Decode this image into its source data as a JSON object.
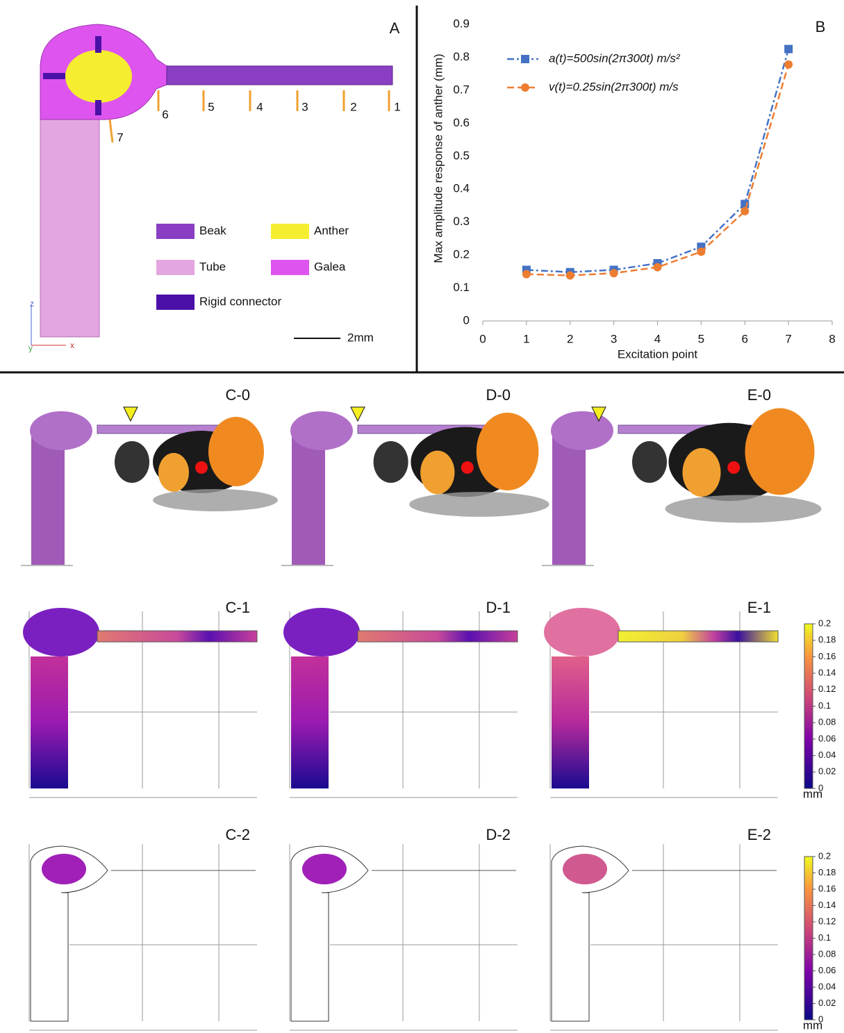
{
  "panel_a": {
    "label": "A",
    "points": [
      "1",
      "2",
      "3",
      "4",
      "5",
      "6",
      "7"
    ],
    "legend": [
      {
        "name": "Beak",
        "color": "#8a3fc2"
      },
      {
        "name": "Anther",
        "color": "#f5ee30"
      },
      {
        "name": "Tube",
        "color": "#e3a6e0"
      },
      {
        "name": "Galea",
        "color": "#dd55ee"
      },
      {
        "name": "Rigid connector",
        "color": "#4a10a8"
      }
    ],
    "axes": [
      "z",
      "y",
      "x"
    ],
    "scale": "2mm"
  },
  "chart_data": {
    "type": "line",
    "panel_label": "B",
    "x_label": "Excitation point",
    "y_label": "Max amplitude response of anther (mm)",
    "x": [
      1,
      2,
      3,
      4,
      5,
      6,
      7
    ],
    "series": [
      {
        "name": "a(t)=500sin(2π300t) m/s²",
        "color": "#4472c4",
        "marker": "square",
        "values": [
          0.155,
          0.148,
          0.155,
          0.175,
          0.225,
          0.355,
          0.825
        ]
      },
      {
        "name": "v(t)=0.25sin(2π300t) m/s",
        "color": "#ed7d31",
        "marker": "circle",
        "values": [
          0.142,
          0.138,
          0.145,
          0.163,
          0.21,
          0.333,
          0.778
        ]
      }
    ],
    "xlim": [
      0,
      8
    ],
    "xticks": [
      0,
      1,
      2,
      3,
      4,
      5,
      6,
      7,
      8
    ],
    "ylim": [
      0,
      0.9
    ],
    "yticks": [
      0,
      0.1,
      0.2,
      0.3,
      0.4,
      0.5,
      0.6,
      0.7,
      0.8,
      0.9
    ]
  },
  "fe_panels": {
    "rows": [
      [
        "C-0",
        "D-0",
        "E-0"
      ],
      [
        "C-1",
        "D-1",
        "E-1"
      ],
      [
        "C-2",
        "D-2",
        "E-2"
      ]
    ]
  },
  "colorbar": {
    "lim": [
      0,
      0.2
    ],
    "ticks": [
      0,
      0.02,
      0.04,
      0.06,
      0.08,
      0.1,
      0.12,
      0.14,
      0.16,
      0.18,
      0.2
    ],
    "unit": "mm"
  }
}
